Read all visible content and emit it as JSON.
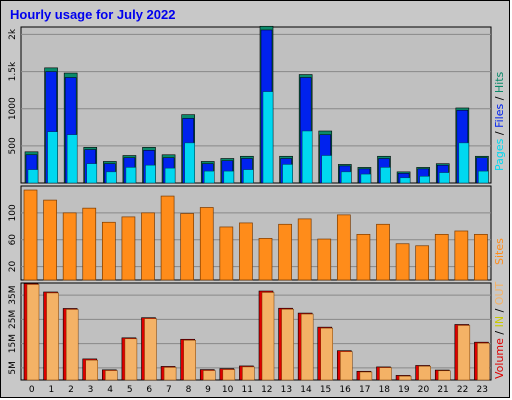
{
  "chart_data": [
    {
      "type": "bar",
      "title": "Hourly usage for July 2022",
      "categories": [
        "0",
        "1",
        "2",
        "3",
        "4",
        "5",
        "6",
        "7",
        "8",
        "9",
        "10",
        "11",
        "12",
        "13",
        "14",
        "15",
        "16",
        "17",
        "18",
        "19",
        "20",
        "21",
        "22",
        "23"
      ],
      "yticks": [
        "500",
        "1000",
        "1.5k",
        "2k"
      ],
      "ylim": [
        0,
        2100
      ],
      "legend": [
        "Pages",
        "Files",
        "Hits"
      ],
      "series": [
        {
          "name": "Hits",
          "color": "#0b8a6a",
          "values": [
            420,
            1550,
            1480,
            480,
            290,
            370,
            480,
            380,
            920,
            290,
            330,
            360,
            2110,
            360,
            1460,
            700,
            250,
            210,
            360,
            150,
            210,
            260,
            1010,
            360
          ]
        },
        {
          "name": "Files",
          "color": "#0022ee",
          "values": [
            380,
            1500,
            1420,
            450,
            260,
            340,
            440,
            340,
            870,
            260,
            300,
            330,
            2060,
            330,
            1420,
            650,
            230,
            190,
            330,
            130,
            190,
            240,
            980,
            340
          ]
        },
        {
          "name": "Pages",
          "color": "#00d8f0",
          "values": [
            180,
            690,
            650,
            260,
            150,
            210,
            240,
            200,
            540,
            160,
            160,
            180,
            1230,
            250,
            700,
            370,
            150,
            120,
            210,
            70,
            90,
            140,
            540,
            160
          ]
        }
      ]
    },
    {
      "type": "bar",
      "categories": [
        "0",
        "1",
        "2",
        "3",
        "4",
        "5",
        "6",
        "7",
        "8",
        "9",
        "10",
        "11",
        "12",
        "13",
        "14",
        "15",
        "16",
        "17",
        "18",
        "19",
        "20",
        "21",
        "22",
        "23"
      ],
      "yticks": [
        "20",
        "60",
        "100"
      ],
      "ylim": [
        0,
        140
      ],
      "legend": [
        "Sites"
      ],
      "series": [
        {
          "name": "Sites",
          "color": "#ff8c1a",
          "values": [
            134,
            119,
            100,
            107,
            86,
            94,
            100,
            125,
            99,
            108,
            79,
            85,
            62,
            83,
            91,
            61,
            97,
            68,
            83,
            54,
            51,
            68,
            73,
            68
          ]
        }
      ]
    },
    {
      "type": "bar",
      "categories": [
        "0",
        "1",
        "2",
        "3",
        "4",
        "5",
        "6",
        "7",
        "8",
        "9",
        "10",
        "11",
        "12",
        "13",
        "14",
        "15",
        "16",
        "17",
        "18",
        "19",
        "20",
        "21",
        "22",
        "23"
      ],
      "yticks": [
        "5M",
        "15M",
        "25M",
        "35M"
      ],
      "ylim": [
        0,
        40
      ],
      "legend": [
        "Volume",
        "IN",
        "OUT"
      ],
      "series": [
        {
          "name": "Volume",
          "color": "#dd0000",
          "values": [
            39.8,
            36.3,
            29.5,
            8.7,
            4.2,
            17.4,
            25.7,
            5.6,
            16.8,
            4.3,
            4.7,
            5.8,
            36.7,
            29.6,
            27.6,
            21.8,
            12.1,
            3.6,
            5.4,
            1.9,
            6.0,
            4.1,
            22.9,
            15.6
          ]
        },
        {
          "name": "OUT",
          "color": "#f4b266",
          "values": [
            39.4,
            35.9,
            29.1,
            8.2,
            3.9,
            17.0,
            25.3,
            5.2,
            16.4,
            3.9,
            4.3,
            5.4,
            36.1,
            29.2,
            27.2,
            21.4,
            11.7,
            3.3,
            5.1,
            1.6,
            5.7,
            3.8,
            22.5,
            15.2
          ]
        }
      ]
    }
  ]
}
